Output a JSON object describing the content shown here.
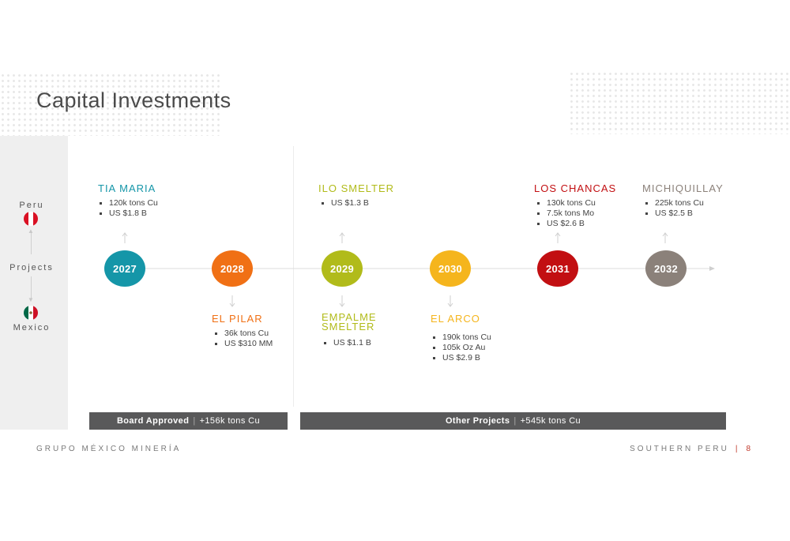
{
  "title": "Capital Investments",
  "sidebar": {
    "top_label": "Peru",
    "middle_label": "Projects",
    "bottom_label": "Mexico"
  },
  "timeline": [
    {
      "year": "2027",
      "color": "#1596a8"
    },
    {
      "year": "2028",
      "color": "#f07015"
    },
    {
      "year": "2029",
      "color": "#b1bb1a"
    },
    {
      "year": "2030",
      "color": "#f5b51d"
    },
    {
      "year": "2031",
      "color": "#c20f12"
    },
    {
      "year": "2032",
      "color": "#8b817a"
    }
  ],
  "projects_top": [
    {
      "name": "TIA MARIA",
      "color": "#1596a8",
      "bullets": [
        "120k tons Cu",
        "US $1.8 B"
      ]
    },
    {
      "name": "ILO SMELTER",
      "color": "#b1bb1a",
      "bullets": [
        "US $1.3 B"
      ]
    },
    {
      "name": "LOS CHANCAS",
      "color": "#c20f12",
      "bullets": [
        "130k tons Cu",
        "7.5k tons Mo",
        "US $2.6 B"
      ]
    },
    {
      "name": "MICHIQUILLAY",
      "color": "#8b817a",
      "bullets": [
        "225k tons Cu",
        "US $2.5 B"
      ]
    }
  ],
  "projects_bottom": [
    {
      "name": "EL PILAR",
      "color": "#f07015",
      "bullets": [
        "36k tons Cu",
        "US $310 MM"
      ]
    },
    {
      "name_line1": "EMPALME",
      "name_line2": "SMELTER",
      "color": "#b1bb1a",
      "bullets": [
        "US $1.1 B"
      ]
    },
    {
      "name": "EL ARCO",
      "color": "#f5b51d",
      "bullets": [
        "190k tons Cu",
        "105k Oz Au",
        "US $2.9 B"
      ]
    }
  ],
  "bars": {
    "left": {
      "bold": "Board Approved",
      "sep": "|",
      "text": "+156k tons Cu"
    },
    "right": {
      "bold": "Other Projects",
      "sep": "|",
      "text": "+545k tons Cu"
    }
  },
  "footer": {
    "left": "GRUPO MÉXICO MINERÍA",
    "right": "SOUTHERN PERU",
    "sep": "|",
    "page": "8"
  }
}
